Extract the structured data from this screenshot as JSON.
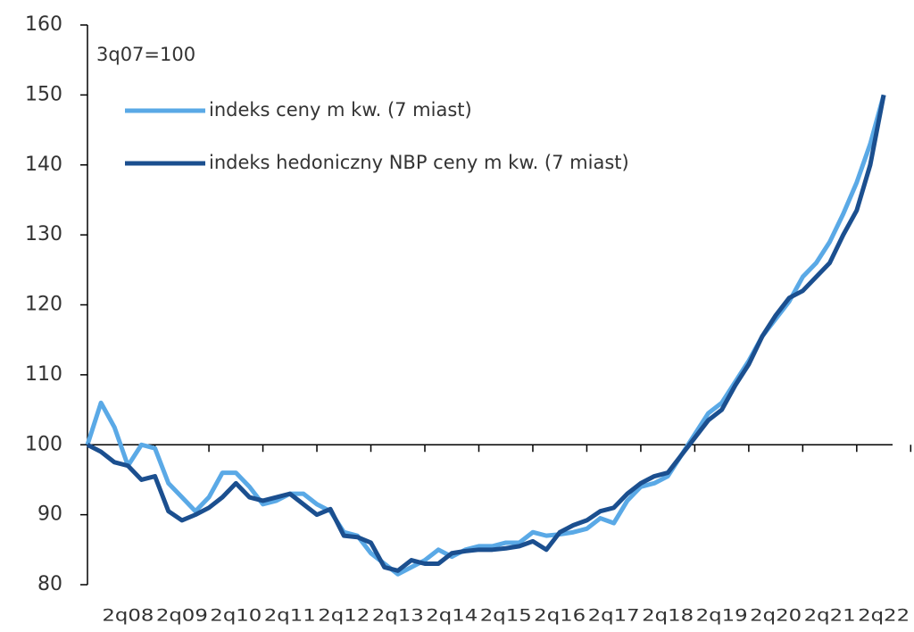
{
  "chart_data": {
    "type": "line",
    "annotation": "3q07=100",
    "categories": [
      null,
      null,
      null,
      "2q08",
      null,
      null,
      null,
      "2q09",
      null,
      null,
      null,
      "2q10",
      null,
      null,
      null,
      "2q11",
      null,
      null,
      null,
      "2q12",
      null,
      null,
      null,
      "2q13",
      null,
      null,
      null,
      "2q14",
      null,
      null,
      null,
      "2q15",
      null,
      null,
      null,
      "2q16",
      null,
      null,
      null,
      "2q17",
      null,
      null,
      null,
      "2q18",
      null,
      null,
      null,
      "2q19",
      null,
      null,
      null,
      "2q20",
      null,
      null,
      null,
      "2q21",
      null,
      null,
      null,
      "2q22"
    ],
    "series": [
      {
        "name": "indeks ceny m kw. (7 miast)",
        "color": "#5aa9e6",
        "values": [
          100,
          106,
          102.5,
          97,
          100,
          99.5,
          94.5,
          92.5,
          90.5,
          92.5,
          96,
          96,
          94,
          91.5,
          92,
          93,
          93,
          91.5,
          90.5,
          87.5,
          87,
          84.5,
          83,
          81.5,
          82.5,
          83.5,
          85,
          84,
          85,
          85.5,
          85.5,
          86,
          86,
          87.5,
          87,
          87.2,
          87.5,
          88,
          89.5,
          88.8,
          92,
          94,
          94.5,
          95.5,
          98.5,
          101.5,
          104.5,
          106,
          109,
          112,
          115.5,
          118,
          120.5,
          124,
          126,
          129,
          133,
          137.5,
          143,
          150
        ]
      },
      {
        "name": "indeks hedoniczny NBP ceny m kw. (7 miast)",
        "color": "#1b4f8f",
        "values": [
          100,
          99,
          97.5,
          97,
          95,
          95.5,
          90.5,
          89.2,
          90,
          91,
          92.5,
          94.5,
          92.5,
          92,
          92.5,
          93,
          91.5,
          90,
          90.8,
          87,
          86.8,
          86,
          82.5,
          82,
          83.5,
          83,
          83,
          84.5,
          84.8,
          85,
          85,
          85.2,
          85.5,
          86.2,
          85,
          87.5,
          88.5,
          89.2,
          90.5,
          91,
          93,
          94.5,
          95.5,
          96,
          98.5,
          101,
          103.5,
          105,
          108.5,
          111.5,
          115.5,
          118.5,
          121,
          122,
          124,
          126,
          130,
          133.5,
          140,
          150
        ]
      }
    ],
    "ylim": [
      80,
      160
    ],
    "yticks": [
      80,
      90,
      100,
      110,
      120,
      130,
      140,
      150,
      160
    ],
    "baseline": 100
  }
}
